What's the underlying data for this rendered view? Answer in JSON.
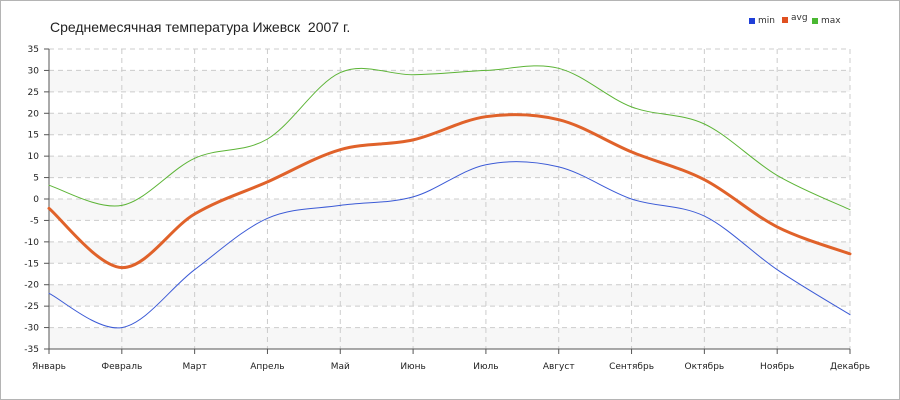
{
  "chart_data": {
    "type": "line",
    "title": "Среднемесячная температура Ижевск  2007 г.",
    "xlabel": "",
    "ylabel": "",
    "categories": [
      "Январь",
      "Февраль",
      "Март",
      "Апрель",
      "Май",
      "Июнь",
      "Июль",
      "Август",
      "Сентябрь",
      "Октябрь",
      "Ноябрь",
      "Декабрь"
    ],
    "ylim": [
      -35,
      35
    ],
    "yticks": [
      35,
      30,
      25,
      20,
      15,
      10,
      5,
      0,
      -5,
      -10,
      -15,
      -20,
      -25,
      -30,
      -35
    ],
    "grid": true,
    "legend_position": "top-right",
    "series": [
      {
        "name": "min",
        "color": "#3b5ad6",
        "values": [
          -22,
          -30,
          -16.5,
          -4.5,
          -1.5,
          0.5,
          8,
          7.5,
          0,
          -4,
          -16.5,
          -27
        ]
      },
      {
        "name": "avg",
        "color": "#e0622a",
        "values": [
          -2.2,
          -16,
          -3.5,
          4,
          11.5,
          13.8,
          19.2,
          18.5,
          11,
          4.5,
          -6.5,
          -12.8
        ]
      },
      {
        "name": "max",
        "color": "#5cb436",
        "values": [
          3.2,
          -1.5,
          9.5,
          14,
          29.5,
          29,
          30,
          30.5,
          21.5,
          17.5,
          5.5,
          -2.5
        ]
      }
    ],
    "legend_swatch_colors": {
      "min": "#1f3fd8",
      "avg": "#e05020",
      "max": "#4ab832"
    }
  }
}
